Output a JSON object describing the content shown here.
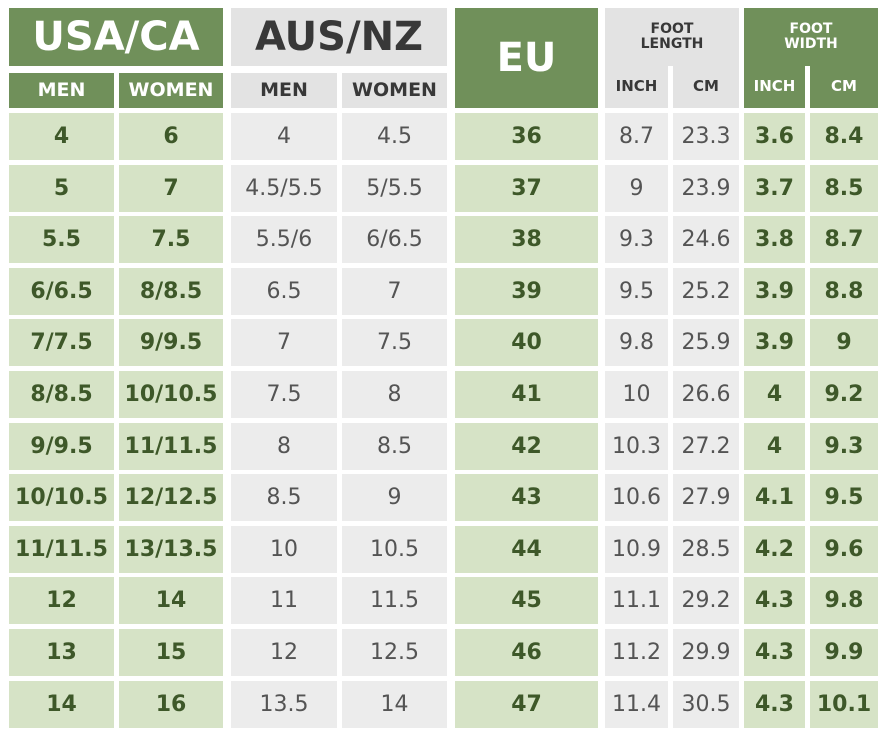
{
  "headers": {
    "usa_ca": "USA/CA",
    "aus_nz": "AUS/NZ",
    "eu": "EU",
    "foot_length": "FOOT\nLENGTH",
    "foot_width": "FOOT\nWIDTH",
    "men": "MEN",
    "women": "WOMEN",
    "inch": "INCH",
    "cm": "CM"
  },
  "colors": {
    "green_dark": "#70905a",
    "green_light": "#d6e3c6",
    "green_text": "#3e5829",
    "gray_mid": "#e3e3e3",
    "gray_light": "#ececec"
  },
  "rows": [
    {
      "usa_men": "4",
      "usa_women": "6",
      "aus_men": "4",
      "aus_women": "4.5",
      "eu": "36",
      "len_in": "8.7",
      "len_cm": "23.3",
      "wid_in": "3.6",
      "wid_cm": "8.4"
    },
    {
      "usa_men": "5",
      "usa_women": "7",
      "aus_men": "4.5/5.5",
      "aus_women": "5/5.5",
      "eu": "37",
      "len_in": "9",
      "len_cm": "23.9",
      "wid_in": "3.7",
      "wid_cm": "8.5"
    },
    {
      "usa_men": "5.5",
      "usa_women": "7.5",
      "aus_men": "5.5/6",
      "aus_women": "6/6.5",
      "eu": "38",
      "len_in": "9.3",
      "len_cm": "24.6",
      "wid_in": "3.8",
      "wid_cm": "8.7"
    },
    {
      "usa_men": "6/6.5",
      "usa_women": "8/8.5",
      "aus_men": "6.5",
      "aus_women": "7",
      "eu": "39",
      "len_in": "9.5",
      "len_cm": "25.2",
      "wid_in": "3.9",
      "wid_cm": "8.8"
    },
    {
      "usa_men": "7/7.5",
      "usa_women": "9/9.5",
      "aus_men": "7",
      "aus_women": "7.5",
      "eu": "40",
      "len_in": "9.8",
      "len_cm": "25.9",
      "wid_in": "3.9",
      "wid_cm": "9"
    },
    {
      "usa_men": "8/8.5",
      "usa_women": "10/10.5",
      "aus_men": "7.5",
      "aus_women": "8",
      "eu": "41",
      "len_in": "10",
      "len_cm": "26.6",
      "wid_in": "4",
      "wid_cm": "9.2"
    },
    {
      "usa_men": "9/9.5",
      "usa_women": "11/11.5",
      "aus_men": "8",
      "aus_women": "8.5",
      "eu": "42",
      "len_in": "10.3",
      "len_cm": "27.2",
      "wid_in": "4",
      "wid_cm": "9.3"
    },
    {
      "usa_men": "10/10.5",
      "usa_women": "12/12.5",
      "aus_men": "8.5",
      "aus_women": "9",
      "eu": "43",
      "len_in": "10.6",
      "len_cm": "27.9",
      "wid_in": "4.1",
      "wid_cm": "9.5"
    },
    {
      "usa_men": "11/11.5",
      "usa_women": "13/13.5",
      "aus_men": "10",
      "aus_women": "10.5",
      "eu": "44",
      "len_in": "10.9",
      "len_cm": "28.5",
      "wid_in": "4.2",
      "wid_cm": "9.6"
    },
    {
      "usa_men": "12",
      "usa_women": "14",
      "aus_men": "11",
      "aus_women": "11.5",
      "eu": "45",
      "len_in": "11.1",
      "len_cm": "29.2",
      "wid_in": "4.3",
      "wid_cm": "9.8"
    },
    {
      "usa_men": "13",
      "usa_women": "15",
      "aus_men": "12",
      "aus_women": "12.5",
      "eu": "46",
      "len_in": "11.2",
      "len_cm": "29.9",
      "wid_in": "4.3",
      "wid_cm": "9.9"
    },
    {
      "usa_men": "14",
      "usa_women": "16",
      "aus_men": "13.5",
      "aus_women": "14",
      "eu": "47",
      "len_in": "11.4",
      "len_cm": "30.5",
      "wid_in": "4.3",
      "wid_cm": "10.1"
    }
  ]
}
